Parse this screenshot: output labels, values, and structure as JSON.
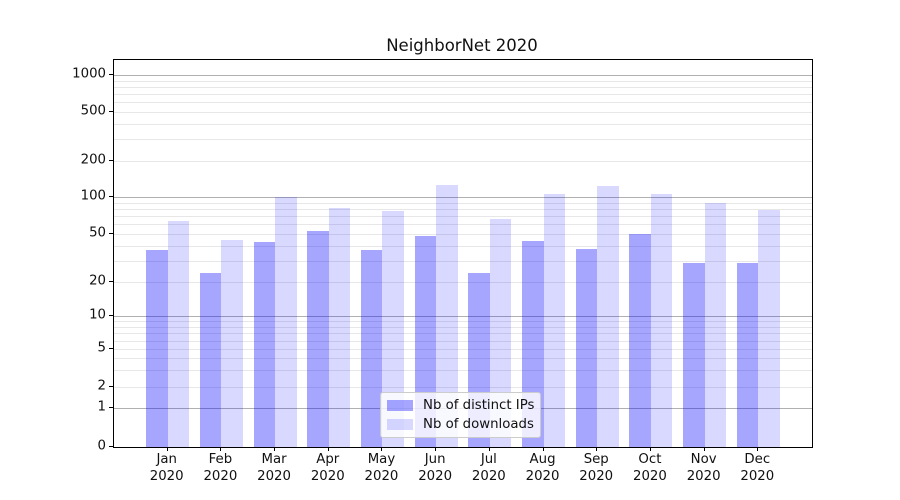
{
  "chart_data": {
    "type": "bar",
    "title": "NeighborNet 2020",
    "categories": [
      "Jan",
      "Feb",
      "Mar",
      "Apr",
      "May",
      "Jun",
      "Jul",
      "Aug",
      "Sep",
      "Oct",
      "Nov",
      "Dec"
    ],
    "category_year": "2020",
    "series": [
      {
        "name": "Nb of distinct IPs",
        "color": "rgba(0,0,255,0.35)",
        "values": [
          37,
          24,
          43,
          53,
          37,
          48,
          24,
          44,
          38,
          50,
          29,
          29
        ]
      },
      {
        "name": "Nb of downloads",
        "color": "rgba(0,0,255,0.15)",
        "values": [
          64,
          45,
          100,
          82,
          77,
          126,
          66,
          107,
          125,
          106,
          90,
          79
        ]
      }
    ],
    "yscale": "symlog",
    "y_ticks": [
      0,
      1,
      2,
      5,
      10,
      20,
      50,
      100,
      200,
      500,
      1000
    ],
    "y_minor_gridlines": [
      3,
      4,
      6,
      7,
      8,
      9,
      30,
      40,
      60,
      70,
      80,
      90,
      300,
      400,
      600,
      700,
      800,
      900
    ],
    "xlabel": "",
    "ylabel": "",
    "grid": "horizontal",
    "legend_position": "lower center",
    "colors": {
      "major_gridline": "#b0b0b0",
      "minor_gridline": "#e7e7e7",
      "axis": "#000000",
      "text": "#111111"
    }
  }
}
